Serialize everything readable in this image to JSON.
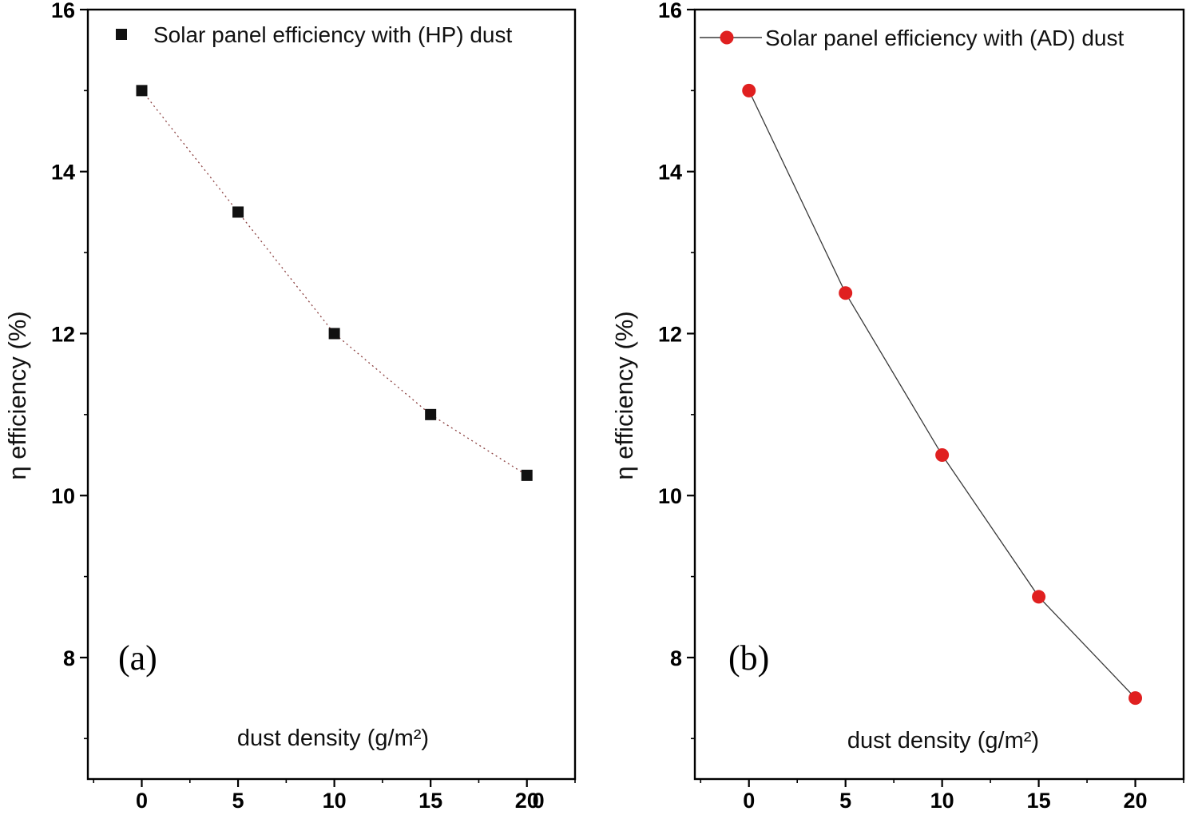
{
  "figure": {
    "background": "#ffffff",
    "axis_color": "#000000"
  },
  "chart_data": [
    {
      "type": "scatter",
      "panel_label": "(a)",
      "legend": [
        {
          "label": "Solar panel efficiency with (HP) dust",
          "marker": "square",
          "marker_color": "#111111",
          "line": "none"
        }
      ],
      "legend_position": "top-left",
      "xlabel": "dust density (g/m²)",
      "ylabel": "η efficiency (%)",
      "x": [
        0,
        5,
        10,
        15,
        20
      ],
      "series": [
        {
          "name": "Solar panel efficiency with (HP) dust",
          "values": [
            15.0,
            13.5,
            12.0,
            11.0,
            10.25
          ],
          "marker": "square",
          "marker_color": "#111111",
          "line_color": "#8b4040",
          "line_style": "dashed"
        }
      ],
      "xlim": [
        -2.8,
        22.5
      ],
      "ylim": [
        6.5,
        16
      ],
      "x_ticks": [
        0,
        5,
        10,
        15,
        20
      ],
      "y_ticks": [
        8,
        10,
        12,
        14,
        16
      ],
      "x_minor_step": 2.5,
      "y_minor_step": 1,
      "grid": false,
      "extra_x_axis_label": {
        "text": "0",
        "x": 20.6
      }
    },
    {
      "type": "scatter",
      "panel_label": "(b)",
      "legend": [
        {
          "label": "Solar panel  efficiency with (AD) dust",
          "marker": "circle",
          "marker_color": "#e02020",
          "line": "solid"
        }
      ],
      "legend_position": "top-left",
      "xlabel": "dust density (g/m²)",
      "ylabel": "η efficiency (%)",
      "x": [
        0,
        5,
        10,
        15,
        20
      ],
      "series": [
        {
          "name": "Solar panel  efficiency with (AD) dust",
          "values": [
            15.0,
            12.5,
            10.5,
            8.75,
            7.5
          ],
          "marker": "circle",
          "marker_color": "#e02020",
          "line_color": "#3a3a3a",
          "line_style": "solid"
        }
      ],
      "xlim": [
        -2.8,
        22.5
      ],
      "ylim": [
        6.5,
        16
      ],
      "x_ticks": [
        0,
        5,
        10,
        15,
        20
      ],
      "y_ticks": [
        8,
        10,
        12,
        14,
        16
      ],
      "x_minor_step": 2.5,
      "y_minor_step": 1,
      "grid": false
    }
  ]
}
